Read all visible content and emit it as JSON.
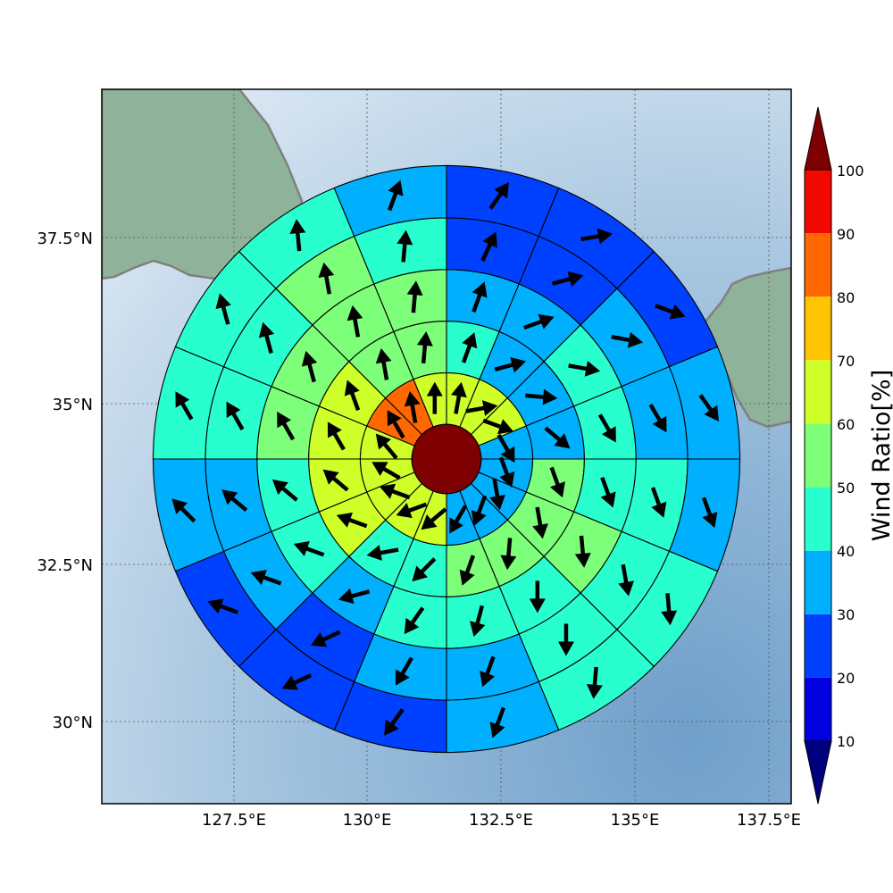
{
  "map": {
    "lon_range": [
      125.0,
      138.0
    ],
    "lat_range": [
      28.5,
      39.5
    ],
    "lon_ticks": [
      "127.5°E",
      "130°E",
      "132.5°E",
      "135°E",
      "137.5°E"
    ],
    "lat_ticks": [
      "30°N",
      "32.5°N",
      "35°N",
      "37.5°N"
    ],
    "ocean_color": "#9dbfdc",
    "land_color": "#8fb39a",
    "coastline_color": "#808080"
  },
  "colorbar": {
    "label": "Wind Ratio[%]",
    "ticks": [
      "10",
      "20",
      "30",
      "40",
      "50",
      "60",
      "70",
      "80",
      "90",
      "100"
    ],
    "levels": [
      0,
      10,
      20,
      30,
      40,
      50,
      60,
      70,
      80,
      90,
      100,
      110
    ],
    "colors": [
      "#00007f",
      "#0000e0",
      "#0040ff",
      "#00b0ff",
      "#29ffce",
      "#7dff7a",
      "#ceff29",
      "#ffc400",
      "#ff6800",
      "#f10800",
      "#7f0000"
    ]
  },
  "chart_data": {
    "type": "polar_grid_map",
    "center_lon": 131.5,
    "center_lat": 34.15,
    "center_value": 100,
    "ring_edges_deg": [
      0.55,
      1.37,
      2.19,
      3.01,
      3.83,
      4.66
    ],
    "sectors_per_ring": 16,
    "wind_ratio": [
      [
        67,
        67,
        67,
        35,
        35,
        35,
        35,
        35,
        64,
        64,
        64,
        64,
        64,
        82,
        82,
        67
      ],
      [
        45,
        35,
        35,
        35,
        57,
        57,
        57,
        57,
        45,
        45,
        64,
        64,
        64,
        64,
        57,
        57
      ],
      [
        35,
        35,
        45,
        45,
        45,
        57,
        45,
        45,
        45,
        35,
        45,
        45,
        57,
        57,
        57,
        57
      ],
      [
        25,
        25,
        35,
        35,
        45,
        45,
        45,
        35,
        35,
        25,
        35,
        35,
        45,
        45,
        57,
        45
      ],
      [
        25,
        25,
        25,
        35,
        35,
        45,
        45,
        35,
        25,
        25,
        25,
        35,
        45,
        45,
        45,
        35
      ]
    ],
    "wind_dir_deg": [
      [
        10,
        80,
        110,
        150,
        160,
        170,
        200,
        210,
        230,
        250,
        290,
        300,
        320,
        330,
        350,
        0
      ],
      [
        20,
        75,
        95,
        130,
        160,
        170,
        185,
        200,
        225,
        260,
        290,
        310,
        330,
        340,
        350,
        5
      ],
      [
        20,
        70,
        100,
        150,
        160,
        175,
        180,
        195,
        215,
        255,
        290,
        310,
        330,
        345,
        350,
        5
      ],
      [
        25,
        75,
        100,
        150,
        160,
        170,
        180,
        200,
        210,
        245,
        290,
        310,
        330,
        345,
        350,
        5
      ],
      [
        35,
        80,
        110,
        145,
        160,
        175,
        185,
        200,
        215,
        245,
        290,
        315,
        330,
        345,
        355,
        20
      ]
    ]
  }
}
